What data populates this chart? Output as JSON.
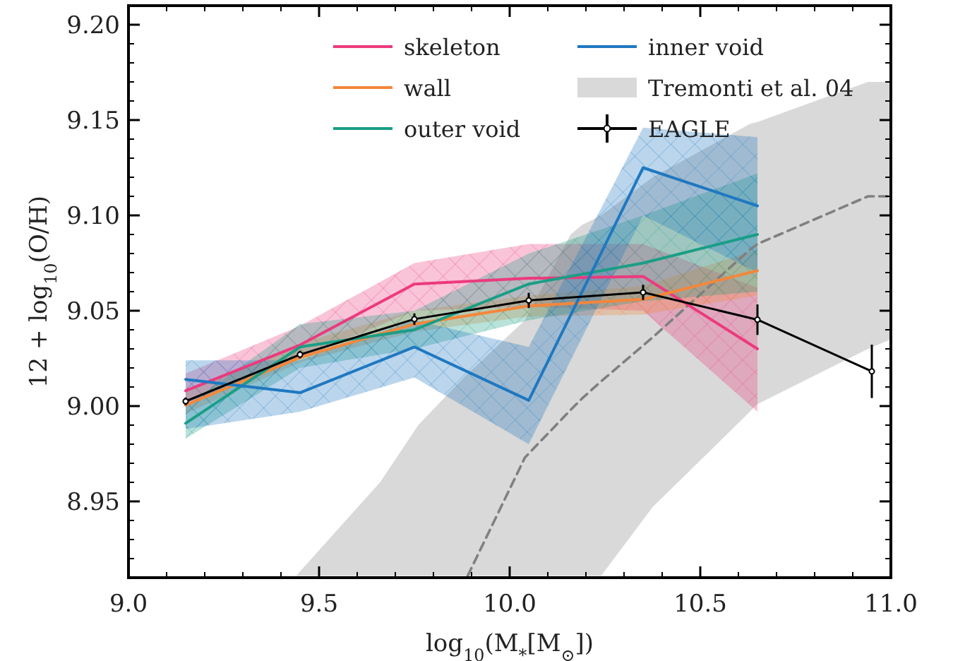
{
  "chart_data": {
    "type": "line",
    "xlabel": "log$_{10}$(M$_{*}$[M$_{⊙}$])",
    "ylabel": "12 + log$_{10}$(O/H)",
    "xlim": [
      9.0,
      11.0
    ],
    "ylim": [
      8.91,
      9.21
    ],
    "xticks": [
      {
        "value": 9.0,
        "label": "9.0"
      },
      {
        "value": 9.1,
        "label": null
      },
      {
        "value": 9.2,
        "label": null
      },
      {
        "value": 9.3,
        "label": null
      },
      {
        "value": 9.4,
        "label": null
      },
      {
        "value": 9.5,
        "label": "9.5"
      },
      {
        "value": 9.6,
        "label": null
      },
      {
        "value": 9.7,
        "label": null
      },
      {
        "value": 9.8,
        "label": null
      },
      {
        "value": 9.9,
        "label": null
      },
      {
        "value": 10.0,
        "label": "10.0"
      },
      {
        "value": 10.1,
        "label": null
      },
      {
        "value": 10.2,
        "label": null
      },
      {
        "value": 10.3,
        "label": null
      },
      {
        "value": 10.4,
        "label": null
      },
      {
        "value": 10.5,
        "label": "10.5"
      },
      {
        "value": 10.6,
        "label": null
      },
      {
        "value": 10.7,
        "label": null
      },
      {
        "value": 10.8,
        "label": null
      },
      {
        "value": 10.9,
        "label": null
      },
      {
        "value": 11.0,
        "label": "11.0"
      }
    ],
    "yticks": [
      {
        "value": 8.92,
        "label": null
      },
      {
        "value": 8.93,
        "label": null
      },
      {
        "value": 8.94,
        "label": null
      },
      {
        "value": 8.95,
        "label": "8.95"
      },
      {
        "value": 8.96,
        "label": null
      },
      {
        "value": 8.97,
        "label": null
      },
      {
        "value": 8.98,
        "label": null
      },
      {
        "value": 8.99,
        "label": null
      },
      {
        "value": 9.0,
        "label": "9.00"
      },
      {
        "value": 9.01,
        "label": null
      },
      {
        "value": 9.02,
        "label": null
      },
      {
        "value": 9.03,
        "label": null
      },
      {
        "value": 9.04,
        "label": null
      },
      {
        "value": 9.05,
        "label": "9.05"
      },
      {
        "value": 9.06,
        "label": null
      },
      {
        "value": 9.07,
        "label": null
      },
      {
        "value": 9.08,
        "label": null
      },
      {
        "value": 9.09,
        "label": null
      },
      {
        "value": 9.1,
        "label": "9.10"
      },
      {
        "value": 9.11,
        "label": null
      },
      {
        "value": 9.12,
        "label": null
      },
      {
        "value": 9.13,
        "label": null
      },
      {
        "value": 9.14,
        "label": null
      },
      {
        "value": 9.15,
        "label": "9.15"
      },
      {
        "value": 9.16,
        "label": null
      },
      {
        "value": 9.17,
        "label": null
      },
      {
        "value": 9.18,
        "label": null
      },
      {
        "value": 9.19,
        "label": null
      },
      {
        "value": 9.2,
        "label": "9.20"
      }
    ],
    "grid": false,
    "legend": "top",
    "series": [
      {
        "name": "skeleton",
        "color": "#ec3a7d",
        "marker": "none",
        "line_style": "solid",
        "x": [
          9.15,
          9.45,
          9.75,
          10.05,
          10.35,
          10.65
        ],
        "values": [
          9.008,
          9.032,
          9.064,
          9.067,
          9.068,
          9.03
        ],
        "lower": [
          9.0,
          9.025,
          9.05,
          9.052,
          9.05,
          8.997
        ],
        "upper": [
          9.017,
          9.042,
          9.075,
          9.085,
          9.085,
          9.062
        ]
      },
      {
        "name": "wall",
        "color": "#f4873b",
        "marker": "none",
        "line_style": "solid",
        "x": [
          9.15,
          9.45,
          9.75,
          10.05,
          10.35,
          10.65
        ],
        "values": [
          9.0005,
          9.0255,
          9.043,
          9.0525,
          9.056,
          9.071
        ],
        "lower": [
          8.996,
          9.023,
          9.039,
          9.047,
          9.048,
          9.058
        ],
        "upper": [
          9.007,
          9.033,
          9.05,
          9.058,
          9.063,
          9.082
        ]
      },
      {
        "name": "outer void",
        "color": "#1a9e86",
        "marker": "none",
        "line_style": "solid",
        "x": [
          9.15,
          9.45,
          9.75,
          10.05,
          10.35,
          10.65
        ],
        "values": [
          8.991,
          9.031,
          9.04,
          9.064,
          9.075,
          9.09
        ],
        "lower": [
          8.983,
          9.02,
          9.03,
          9.045,
          9.055,
          9.06
        ],
        "upper": [
          9.0,
          9.043,
          9.05,
          9.08,
          9.1,
          9.122
        ]
      },
      {
        "name": "inner void",
        "color": "#1f78c1",
        "marker": "none",
        "line_style": "solid",
        "x": [
          9.15,
          9.45,
          9.75,
          10.05,
          10.35,
          10.65
        ],
        "values": [
          9.014,
          9.007,
          9.031,
          9.003,
          9.125,
          9.105
        ],
        "lower": [
          8.988,
          8.997,
          9.015,
          8.98,
          9.1,
          9.07
        ],
        "upper": [
          9.024,
          9.024,
          9.045,
          9.031,
          9.146,
          9.141
        ]
      },
      {
        "name": "Tremonti et al. 04",
        "color": "#808080",
        "marker": "none",
        "line_style": "dashed",
        "x": [
          9.44,
          9.57,
          9.66,
          9.76,
          9.87,
          9.89,
          10.04,
          10.16,
          10.19,
          10.24,
          10.375,
          10.63,
          10.65,
          10.94,
          11.0
        ],
        "values": [
          null,
          null,
          null,
          null,
          null,
          8.911,
          8.973,
          8.998,
          9.004,
          9.013,
          9.036,
          9.082,
          9.085,
          9.11,
          9.11
        ],
        "lower": [
          8.911,
          8.911,
          8.911,
          8.911,
          8.911,
          8.911,
          8.911,
          8.911,
          8.911,
          8.911,
          8.947,
          8.997,
          9.001,
          9.03,
          9.035
        ],
        "upper": [
          8.911,
          8.94,
          8.96,
          8.99,
          9.013,
          9.017,
          9.045,
          9.09,
          9.095,
          9.1,
          9.12,
          9.148,
          9.149,
          9.17,
          9.17
        ]
      },
      {
        "name": "EAGLE",
        "color": "#000000",
        "marker": "circle",
        "line_style": "solid",
        "x": [
          9.15,
          9.45,
          9.75,
          10.05,
          10.35,
          10.65,
          10.95
        ],
        "values": [
          9.0025,
          9.027,
          9.0456,
          9.0554,
          9.0596,
          9.0453,
          9.0182
        ],
        "errors": [
          0.002,
          0.002,
          0.003,
          0.004,
          0.004,
          0.008,
          0.014
        ]
      }
    ]
  }
}
